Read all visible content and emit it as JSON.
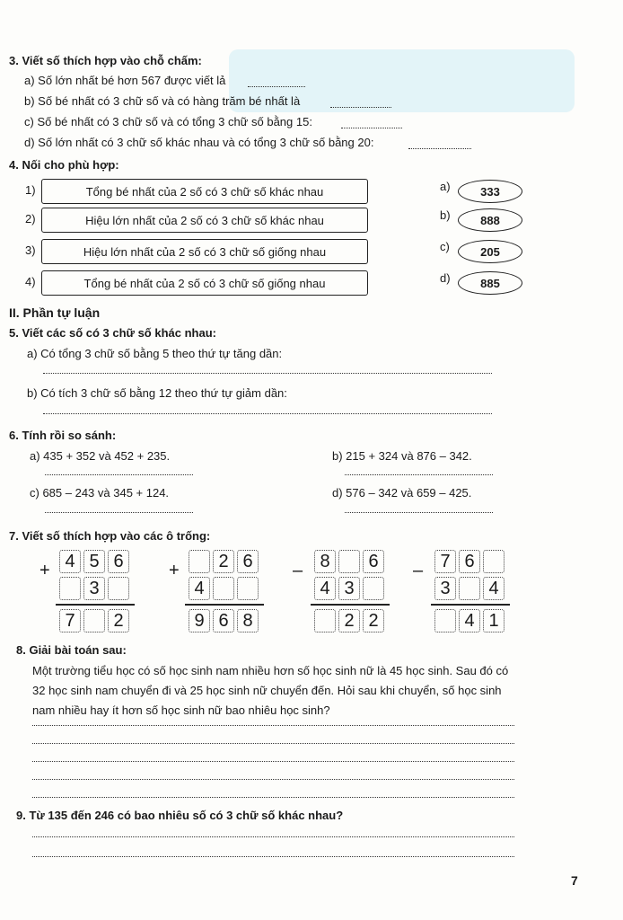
{
  "q3": {
    "title": "3. Viết số thích hợp vào chỗ chấm:",
    "items": [
      "a) Số lớn nhất bé hơn 567 được viết lả",
      "b) Số bé nhất có 3 chữ số và có hàng trăm bé nhất là",
      "c) Số bé nhất có 3 chữ số và có tổng 3 chữ số bằng 15:",
      "d) Số lớn nhất có 3 chữ số khác nhau và có tổng 3 chữ số bằng 20:"
    ]
  },
  "q4": {
    "title": "4. Nối cho phù hợp:",
    "left": [
      {
        "num": "1)",
        "text": "Tổng bé nhất của 2 số có 3 chữ số khác nhau"
      },
      {
        "num": "2)",
        "text": "Hiệu lớn nhất của 2 số có 3 chữ số khác nhau"
      },
      {
        "num": "3)",
        "text": "Hiệu lớn nhất của 2 số có 3 chữ số giống nhau"
      },
      {
        "num": "4)",
        "text": "Tổng bé nhất của 2 số có 3 chữ số giống nhau"
      }
    ],
    "right": [
      {
        "letter": "a)",
        "value": "333"
      },
      {
        "letter": "b)",
        "value": "888"
      },
      {
        "letter": "c)",
        "value": "205"
      },
      {
        "letter": "d)",
        "value": "885"
      }
    ]
  },
  "part2": "II. Phần tự luận",
  "q5": {
    "title": "5. Viết các số có 3 chữ số khác nhau:",
    "a": "a) Có tổng 3 chữ số bằng 5 theo thứ tự tăng dần:",
    "b": "b) Có tích 3 chữ số bằng 12 theo thứ tự giảm dần:"
  },
  "q6": {
    "title": "6. Tính rồi so sánh:",
    "a": "a) 435 + 352 và 452 + 235.",
    "b": "b) 215 + 324 và 876 – 342.",
    "c": "c) 685 – 243 và 345 + 124.",
    "d": "d) 576 – 342 và 659 – 425."
  },
  "q7": {
    "title": "7. Viết số thích hợp vào các ô trống:",
    "problems": [
      {
        "op": "+",
        "rows": [
          [
            "4",
            "5",
            "6"
          ],
          [
            "",
            "3",
            ""
          ],
          [
            "7",
            "",
            "2"
          ]
        ]
      },
      {
        "op": "+",
        "rows": [
          [
            "",
            "2",
            "6"
          ],
          [
            "4",
            "",
            ""
          ],
          [
            "9",
            "6",
            "8"
          ]
        ]
      },
      {
        "op": "–",
        "rows": [
          [
            "8",
            "",
            "6"
          ],
          [
            "4",
            "3",
            ""
          ],
          [
            "",
            "2",
            "2"
          ]
        ]
      },
      {
        "op": "–",
        "rows": [
          [
            "7",
            "6",
            ""
          ],
          [
            "3",
            "",
            "4"
          ],
          [
            "",
            "4",
            "1"
          ]
        ]
      }
    ]
  },
  "q8": {
    "title": "8. Giải bài toán sau:",
    "lines": [
      "Một trường tiểu học có số học sinh nam nhiều hơn số học sinh nữ là 45 học sinh. Sau đó có",
      "32 học sinh nam chuyển đi và 25 học sinh nữ chuyển đến. Hỏi sau khi chuyển, số học sinh",
      "nam nhiều hay ít hơn số học sinh nữ bao nhiêu học sinh?"
    ]
  },
  "q9": {
    "title": "9. Từ 135 đến 246 có bao nhiêu số có 3 chữ số khác nhau?"
  },
  "page_number": "7"
}
